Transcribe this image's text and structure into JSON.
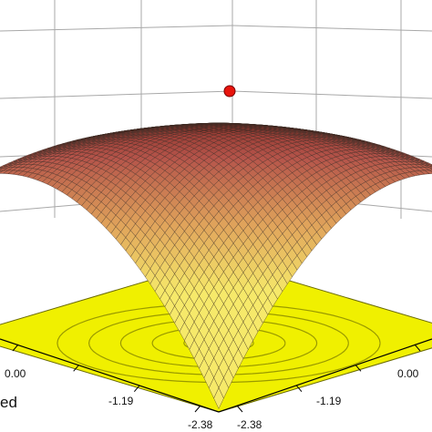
{
  "chart_data": {
    "type": "surface",
    "title": "",
    "subtitle": "",
    "axis_label_fragment": "ed",
    "x_ticks": [
      "0.00",
      "-1.19",
      "-2.38"
    ],
    "y_ticks": [
      "-2.38",
      "-1.19",
      "0.00"
    ],
    "x_range": [
      -2.38,
      2.38
    ],
    "y_range": [
      -2.38,
      2.38
    ],
    "surface": {
      "shape": "concave-down paraboloid",
      "peak": {
        "x": 0.0,
        "y": 0.0
      },
      "mesh_colormap": [
        "#f6e96a",
        "#e0a35b",
        "#b5544a",
        "#6e1713"
      ]
    },
    "contour_floor_color": "#f0f000",
    "contour_line_color": "#9a9a00",
    "optimum_marker_color": "#e8140c",
    "grid": true,
    "legend": "none"
  }
}
